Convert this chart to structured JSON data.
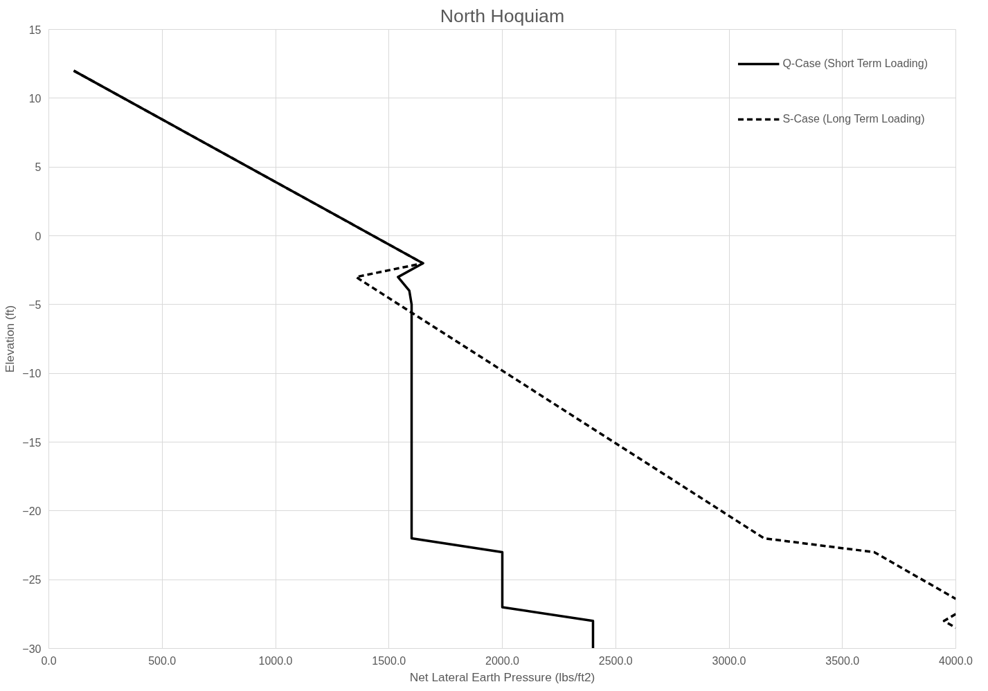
{
  "chart_data": {
    "type": "line",
    "title": "North Hoquiam",
    "xlabel": "Net Lateral Earth Pressure (lbs/ft2)",
    "ylabel": "Elevation (ft)",
    "xlim": [
      0,
      4000
    ],
    "ylim": [
      -30,
      15
    ],
    "xticks": [
      {
        "value": 0,
        "label": "0.0"
      },
      {
        "value": 500,
        "label": "500.0"
      },
      {
        "value": 1000,
        "label": "1000.0"
      },
      {
        "value": 1500,
        "label": "1500.0"
      },
      {
        "value": 2000,
        "label": "2000.0"
      },
      {
        "value": 2500,
        "label": "2500.0"
      },
      {
        "value": 3000,
        "label": "3000.0"
      },
      {
        "value": 3500,
        "label": "3500.0"
      },
      {
        "value": 4000,
        "label": "4000.0"
      }
    ],
    "yticks": [
      -30,
      -25,
      -20,
      -15,
      -10,
      -5,
      0,
      5,
      10,
      15
    ],
    "grid": true,
    "legend": "top right",
    "marker": "none",
    "series": [
      {
        "name": "Q-Case (Short Term Loading)",
        "color": "#000000",
        "line_style": "solid",
        "x": [
          110,
          1650,
          1540,
          1590,
          1600,
          1600,
          1600,
          2000,
          2000,
          2400,
          2400
        ],
        "values": [
          12,
          -2,
          -3,
          -4,
          -5,
          -22,
          -22,
          -23,
          -27,
          -28,
          -30
        ]
      },
      {
        "name": "S-Case (Long Term Loading)",
        "color": "#000000",
        "line_style": "dashed",
        "x": [
          110,
          1650,
          1355,
          3155,
          3640,
          4000,
          null,
          4000,
          3948,
          4000
        ],
        "values": [
          12,
          -2,
          -3,
          -22,
          -23,
          -26.4,
          null,
          -27.5,
          -28,
          -28.5
        ]
      }
    ]
  }
}
